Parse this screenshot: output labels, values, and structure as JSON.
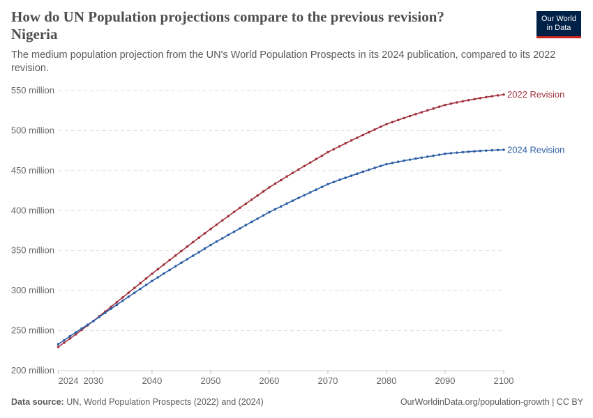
{
  "header": {
    "title": "How do UN Population projections compare to the previous revision?",
    "country": "Nigeria",
    "subtitle": "The medium population projection from the UN's World Population Prospects in its 2024 publication, compared to its 2022 revision.",
    "logo": [
      "Our World",
      "in Data"
    ]
  },
  "footer": {
    "source_label": "Data source:",
    "source": "UN, World Population Prospects (2022) and (2024)",
    "right": "OurWorldinData.org/population-growth | CC BY"
  },
  "chart_data": {
    "type": "line",
    "title": "How do UN Population projections compare to the previous revision?",
    "x_ticks": [
      2024,
      2030,
      2040,
      2050,
      2060,
      2070,
      2080,
      2090,
      2100
    ],
    "y_ticks": [
      200,
      250,
      300,
      350,
      400,
      450,
      500,
      550
    ],
    "y_tick_labels": [
      "200 million",
      "250 million",
      "300 million",
      "350 million",
      "400 million",
      "450 million",
      "500 million",
      "550 million"
    ],
    "xlim": [
      2024,
      2100
    ],
    "ylim": [
      200,
      550
    ],
    "y_unit": "million",
    "grid": "horizontal dashed",
    "legend": "inline labels at line ends (right)",
    "x_start": 2024,
    "series": [
      {
        "name": "2022 Revision",
        "color": "#a2343f",
        "values": [
          229.6,
          234.8,
          240,
          245.4,
          250.9,
          256.5,
          262,
          268,
          273.8,
          279.7,
          285.6,
          291.5,
          297.4,
          303.3,
          309.2,
          315.1,
          321,
          326.7,
          332.4,
          338.1,
          343.8,
          349.4,
          355,
          360.6,
          366.1,
          371.6,
          377,
          382.4,
          387.7,
          393,
          398.3,
          403.5,
          408.6,
          413.7,
          418.8,
          423.9,
          429,
          433.6,
          438.1,
          442.6,
          447,
          451.4,
          455.7,
          460,
          464.3,
          468.6,
          473,
          476.7,
          480.4,
          484,
          487.6,
          491.1,
          494.6,
          498,
          501.3,
          504.7,
          508,
          510.6,
          513.2,
          515.7,
          518.2,
          520.6,
          522.9,
          525.2,
          527.5,
          529.8,
          532,
          533.6,
          535.2,
          536.6,
          538,
          539.3,
          540.6,
          541.8,
          542.9,
          544,
          545
        ]
      },
      {
        "name": "2024 Revision",
        "color": "#2e5fa5",
        "values": [
          233,
          238,
          243,
          247.8,
          252.6,
          257.3,
          262,
          267.1,
          272.2,
          277.3,
          282.3,
          287.3,
          292.3,
          297.3,
          302.2,
          307.1,
          312,
          316.6,
          321.2,
          325.8,
          330.3,
          334.8,
          339.2,
          343.6,
          348,
          352.5,
          357,
          361.2,
          365.4,
          369.5,
          373.6,
          377.7,
          381.8,
          385.9,
          389.9,
          394,
          398,
          401.6,
          405.2,
          408.8,
          412.3,
          415.8,
          419.3,
          422.8,
          426.2,
          429.6,
          433,
          435.7,
          438.4,
          441,
          443.6,
          446.1,
          448.6,
          451,
          453.4,
          455.7,
          458,
          459.5,
          461,
          462.4,
          463.7,
          465,
          466.2,
          467.4,
          468.5,
          469.8,
          471,
          471.7,
          472.4,
          473,
          473.6,
          474.1,
          474.6,
          475,
          475.4,
          475.7,
          476
        ]
      }
    ]
  }
}
